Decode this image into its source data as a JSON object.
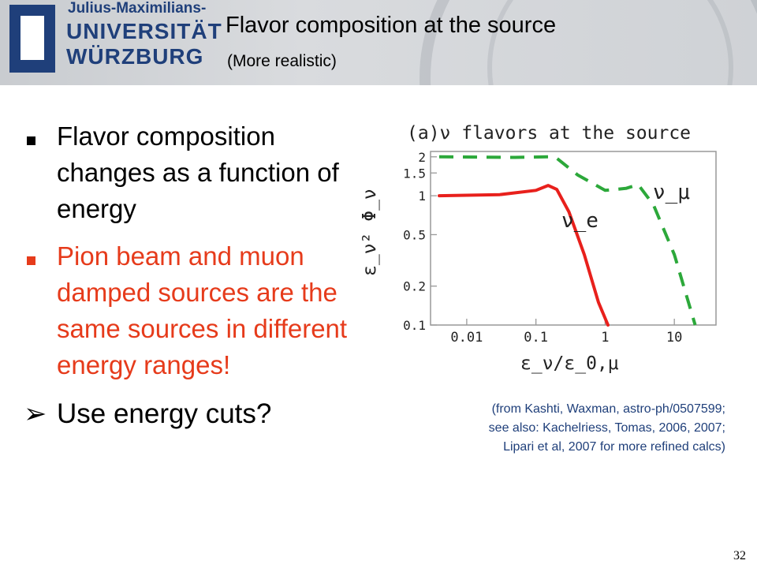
{
  "header": {
    "logo": {
      "subtitle": "Julius-Maximilians-",
      "line1": "UNIVERSITÄT",
      "line2": "WÜRZBURG"
    },
    "title": "Flavor composition at the source",
    "subtitle": "(More realistic)"
  },
  "bullets": [
    {
      "marker": "■",
      "text": "Flavor composition changes as a function of energy",
      "color": "#000000"
    },
    {
      "marker": "■",
      "text": "Pion beam and muon damped sources are the same sources in different energy ranges!",
      "color": "#e63b1b"
    },
    {
      "marker": "➢",
      "text": "Use energy cuts?",
      "color": "#000000"
    }
  ],
  "chart_data": {
    "type": "line",
    "title": "(a)ν flavors at the source",
    "xlabel": "ε_ν/ε_0,μ",
    "ylabel": "ε_ν² Φ_ν",
    "xscale": "log",
    "yscale": "log",
    "xlim": [
      0.003,
      40
    ],
    "ylim": [
      0.1,
      2.2
    ],
    "x_ticks": [
      "0.01",
      "0.1",
      "1",
      "10"
    ],
    "y_ticks": [
      "0.1",
      "0.2",
      "0.5",
      "1",
      "1.5",
      "2"
    ],
    "series": [
      {
        "name": "ν_e",
        "color": "#e8201c",
        "style": "solid",
        "points": [
          [
            0.004,
            1.0
          ],
          [
            0.03,
            1.02
          ],
          [
            0.1,
            1.1
          ],
          [
            0.15,
            1.2
          ],
          [
            0.2,
            1.12
          ],
          [
            0.3,
            0.75
          ],
          [
            0.5,
            0.35
          ],
          [
            0.8,
            0.15
          ],
          [
            1.1,
            0.1
          ]
        ]
      },
      {
        "name": "ν_μ",
        "color": "#2ca83a",
        "style": "dashed",
        "points": [
          [
            0.004,
            2.0
          ],
          [
            0.05,
            1.98
          ],
          [
            0.15,
            2.0
          ],
          [
            0.2,
            1.95
          ],
          [
            0.4,
            1.45
          ],
          [
            1.0,
            1.1
          ],
          [
            2.0,
            1.14
          ],
          [
            3.0,
            1.22
          ],
          [
            5.0,
            0.85
          ],
          [
            10.0,
            0.35
          ],
          [
            20.0,
            0.1
          ]
        ]
      }
    ],
    "annotations": [
      {
        "text": "ν_μ",
        "near_series": "ν_μ"
      },
      {
        "text": "ν_e",
        "near_series": "ν_e"
      }
    ]
  },
  "citation": [
    "(from Kashti, Waxman, astro-ph/0507599;",
    "see also: Kachelriess, Tomas, 2006, 2007;",
    "Lipari et al, 2007 for more refined calcs)"
  ],
  "page_number": "32"
}
